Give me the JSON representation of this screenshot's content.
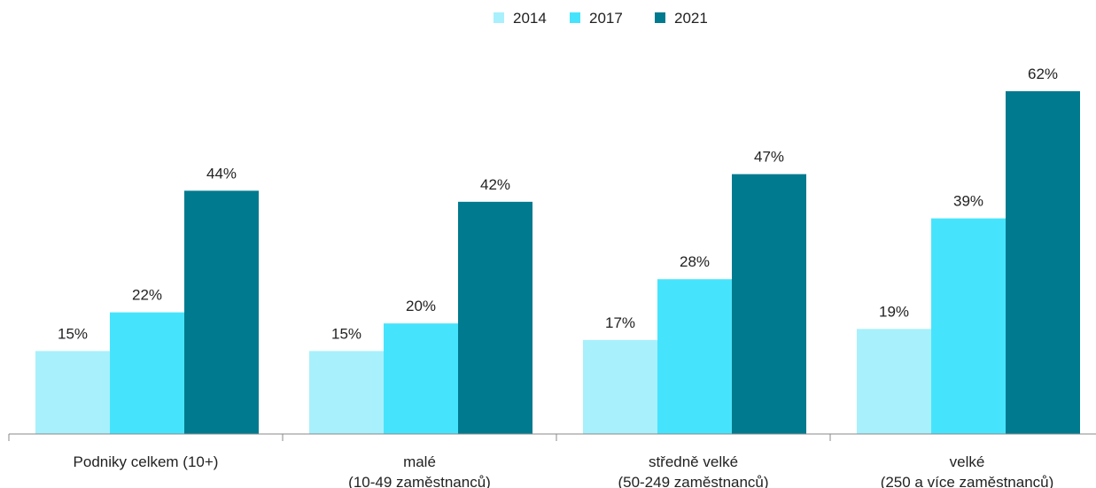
{
  "chart_data": {
    "type": "bar",
    "categories": [
      [
        "Podniky celkem (10+)"
      ],
      [
        "malé",
        "(10-49 zaměstnanců)"
      ],
      [
        "středně velké",
        "(50-249 zaměstnanců)"
      ],
      [
        "velké",
        "(250 a více zaměstnanců)"
      ]
    ],
    "series": [
      {
        "name": "2014",
        "color": "#a8f0fc",
        "values": [
          15,
          15,
          17,
          19
        ],
        "value_labels": [
          "15%",
          "15%",
          "17%",
          "19%"
        ]
      },
      {
        "name": "2017",
        "color": "#46e4fc",
        "values": [
          22,
          20,
          28,
          39
        ],
        "value_labels": [
          "22%",
          "20%",
          "28%",
          "39%"
        ]
      },
      {
        "name": "2021",
        "color": "#007a8f",
        "values": [
          44,
          42,
          47,
          62
        ],
        "value_labels": [
          "44%",
          "42%",
          "47%",
          "62%"
        ]
      }
    ],
    "legend": "top"
  }
}
